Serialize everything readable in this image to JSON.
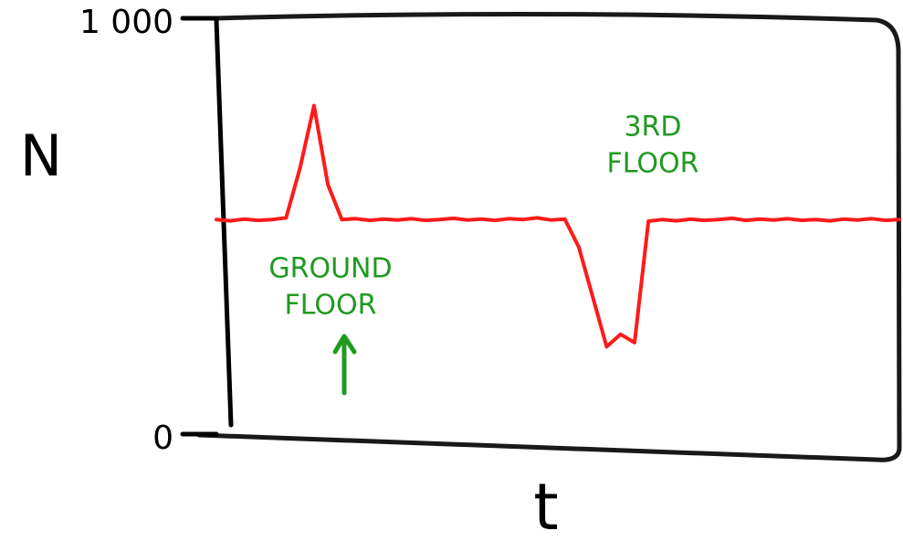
{
  "chart_data": {
    "type": "line",
    "ylabel": "N",
    "xlabel": "t",
    "ylim": [
      0,
      1000
    ],
    "yticks": [
      0,
      {
        "value": 1000,
        "label": "1 000"
      }
    ],
    "categories": [
      null,
      null,
      null,
      null,
      null,
      null,
      null,
      null,
      null,
      null,
      null,
      null,
      null,
      null,
      null,
      null,
      null,
      null,
      null,
      null,
      null,
      null,
      null,
      null,
      null,
      null,
      null,
      null,
      null,
      null,
      null,
      null,
      null,
      null,
      null,
      null,
      null,
      null,
      null,
      null,
      null,
      null,
      null,
      null,
      null,
      null,
      null,
      null,
      null,
      null
    ],
    "series": [
      {
        "color": "#ff1a1a",
        "values": [
          516,
          513,
          517,
          514,
          516,
          520,
          640,
          790,
          600,
          516,
          518,
          514,
          517,
          515,
          518,
          514,
          516,
          519,
          515,
          517,
          514,
          518,
          516,
          520,
          515,
          517,
          450,
          330,
          210,
          240,
          220,
          512,
          516,
          513,
          517,
          514,
          516,
          519,
          514,
          517,
          515,
          518,
          514,
          516,
          513,
          517,
          515,
          518,
          514,
          516
        ]
      }
    ],
    "annotations": [
      {
        "lines": [
          "GROUND",
          "FLOOR"
        ],
        "color": "#1f9a1f"
      },
      {
        "lines": [
          "3RD",
          "FLOOR"
        ],
        "color": "#1f9a1f"
      }
    ]
  }
}
